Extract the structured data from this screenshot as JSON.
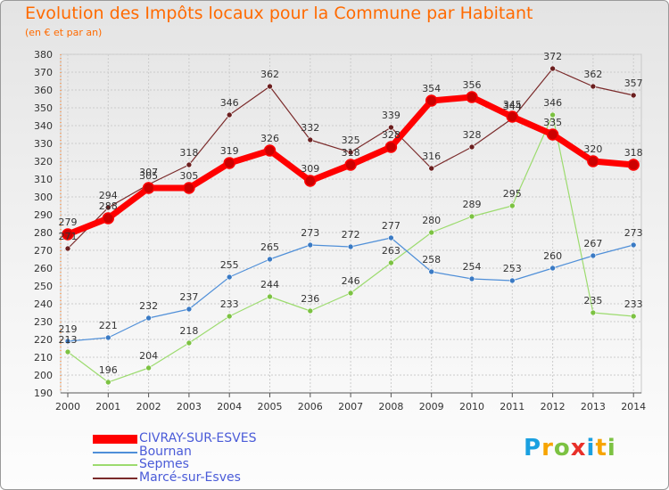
{
  "title": "Evolution des Impôts locaux pour la Commune par Habitant",
  "subtitle": "(en € et par an)",
  "logo": {
    "text": "Proxiti",
    "letters": [
      {
        "ch": "P",
        "color": "#1aa0e0"
      },
      {
        "ch": "r",
        "color": "#f7a400"
      },
      {
        "ch": "o",
        "color": "#7cc242"
      },
      {
        "ch": "x",
        "color": "#e8302a"
      },
      {
        "ch": "i",
        "color": "#1aa0e0"
      },
      {
        "ch": "t",
        "color": "#f7a400"
      },
      {
        "ch": "i",
        "color": "#7cc242"
      }
    ]
  },
  "chart_data": {
    "type": "line",
    "title": "Evolution des Impôts locaux pour la Commune par Habitant",
    "subtitle": "(en € et par an)",
    "xlabel": "",
    "ylabel": "",
    "x": [
      "2000",
      "2001",
      "2002",
      "2003",
      "2004",
      "2005",
      "2006",
      "2007",
      "2008",
      "2009",
      "2010",
      "2011",
      "2012",
      "2013",
      "2014"
    ],
    "ylim": [
      190,
      380
    ],
    "yticks": [
      190,
      200,
      210,
      220,
      230,
      240,
      250,
      260,
      270,
      280,
      290,
      300,
      310,
      320,
      330,
      340,
      350,
      360,
      370,
      380
    ],
    "grid": true,
    "legend_position": "bottom-left",
    "series": [
      {
        "name": "CIVRAY-SUR-ESVES",
        "color": "#ff0000",
        "point_color": "#cc0000",
        "bold": true,
        "values": [
          279,
          288,
          305,
          305,
          319,
          326,
          309,
          318,
          328,
          354,
          356,
          345,
          335,
          320,
          318
        ],
        "labels": [
          "279",
          "288",
          "305",
          "305",
          "319",
          "326",
          "309",
          "318",
          "328",
          "354",
          "356",
          "345",
          "335",
          "320",
          "318"
        ]
      },
      {
        "name": "Bournan",
        "color": "#4f8fd8",
        "point_color": "#3a7ac4",
        "bold": false,
        "values": [
          219,
          221,
          232,
          237,
          255,
          265,
          273,
          272,
          277,
          258,
          254,
          253,
          260,
          267,
          273
        ],
        "labels": [
          "219",
          "221",
          "232",
          "237",
          "255",
          "265",
          "273",
          "272",
          "277",
          "258",
          "254",
          "253",
          "260",
          "267",
          "273"
        ]
      },
      {
        "name": "Sepmes",
        "color": "#9cdb6e",
        "point_color": "#7cc242",
        "bold": false,
        "values": [
          213,
          196,
          204,
          218,
          233,
          244,
          236,
          246,
          263,
          280,
          289,
          295,
          346,
          235,
          233
        ],
        "labels": [
          "213",
          "196",
          "204",
          "218",
          "233",
          "244",
          "236",
          "246",
          "263",
          "280",
          "289",
          "295",
          "346",
          "235",
          "233"
        ]
      },
      {
        "name": "Marcé-sur-Esves",
        "color": "#7a2a2a",
        "point_color": "#6b1f1f",
        "bold": false,
        "values": [
          271,
          294,
          307,
          318,
          346,
          362,
          332,
          325,
          339,
          316,
          328,
          344,
          372,
          362,
          357
        ],
        "labels": [
          "271",
          "294",
          "307",
          "318",
          "346",
          "362",
          "332",
          "325",
          "339",
          "316",
          "328",
          "344",
          "372",
          "362",
          "357"
        ]
      }
    ]
  }
}
